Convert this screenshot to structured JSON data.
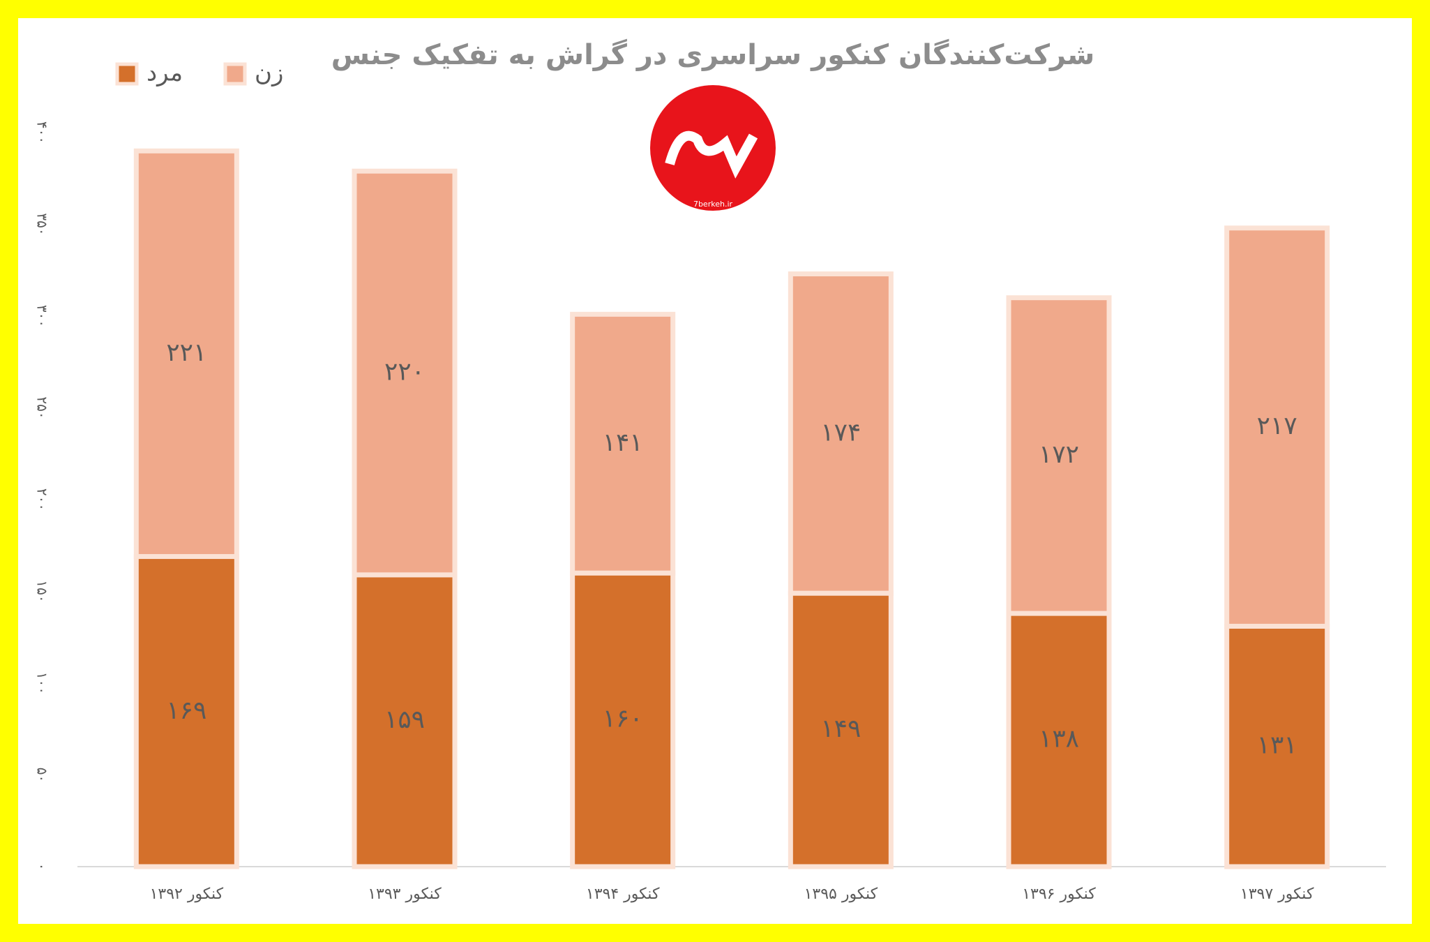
{
  "chart_data": {
    "type": "stacked_bar",
    "title": "شرکت‌کنندگان کنکور سراسری در گراش به تفکیک جنس",
    "logo_text": "7berkeh.ir",
    "categories": [
      "کنکور ۱۳۹۲",
      "کنکور ۱۳۹۳",
      "کنکور ۱۳۹۴",
      "کنکور ۱۳۹۵",
      "کنکور ۱۳۹۶",
      "کنکور ۱۳۹۷"
    ],
    "series": [
      {
        "name": "مرد",
        "color": "#d4702b",
        "values": [
          169,
          159,
          160,
          149,
          138,
          131
        ],
        "value_labels": [
          "۱۶۹",
          "۱۵۹",
          "۱۶۰",
          "۱۴۹",
          "۱۳۸",
          "۱۳۱"
        ]
      },
      {
        "name": "زن",
        "color": "#f0a98b",
        "values": [
          221,
          220,
          141,
          174,
          172,
          217
        ],
        "value_labels": [
          "۲۲۱",
          "۲۲۰",
          "۱۴۱",
          "۱۷۴",
          "۱۷۲",
          "۲۱۷"
        ]
      }
    ],
    "ylim": [
      0,
      400
    ],
    "yticks": [
      {
        "value": 0,
        "label": "۰"
      },
      {
        "value": 50,
        "label": "۵۰"
      },
      {
        "value": 100,
        "label": "۱۰۰"
      },
      {
        "value": 150,
        "label": "۱۵۰"
      },
      {
        "value": 200,
        "label": "۲۰۰"
      },
      {
        "value": 250,
        "label": "۲۵۰"
      },
      {
        "value": 300,
        "label": "۳۰۰"
      },
      {
        "value": 350,
        "label": "۳۵۰"
      },
      {
        "value": 400,
        "label": "۴۰۰"
      }
    ],
    "grid": false,
    "legend": "top-left"
  }
}
